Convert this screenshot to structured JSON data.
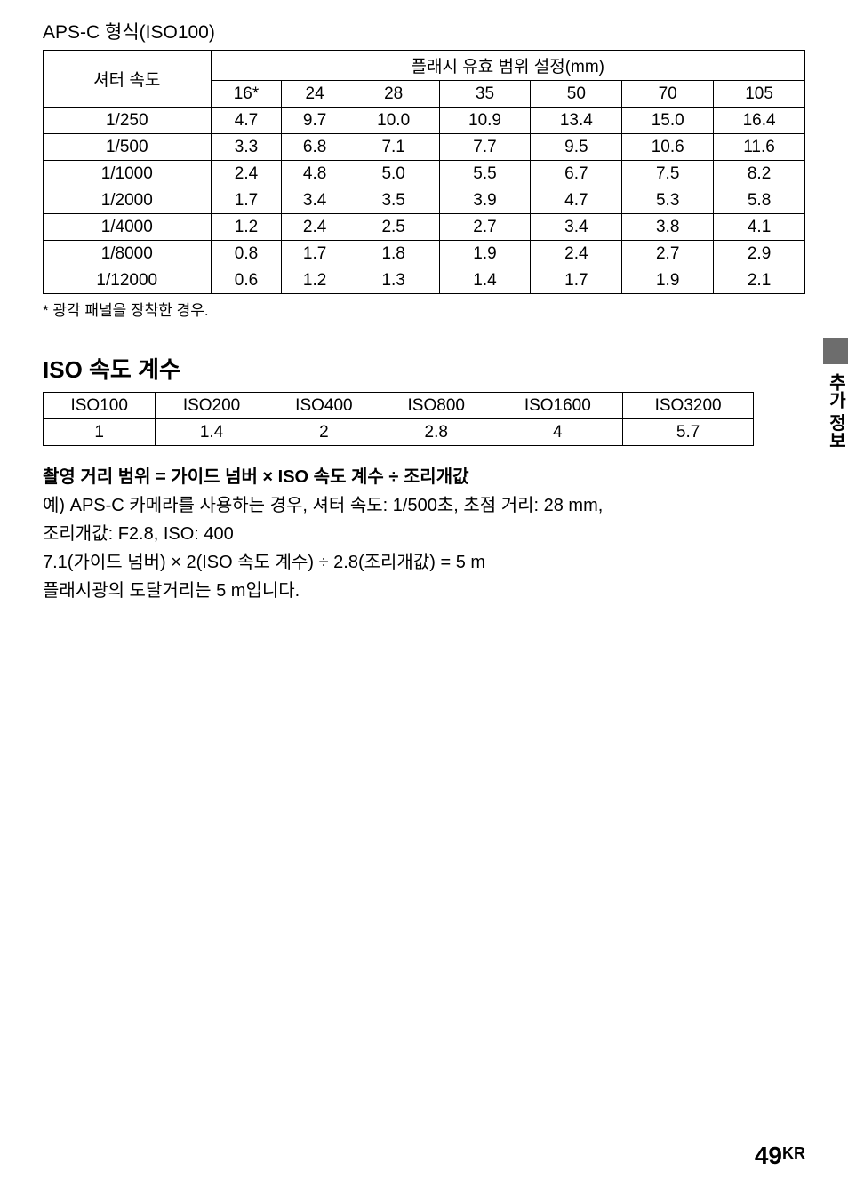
{
  "section1": {
    "title": "APS-C 형식(ISO100)",
    "row_header": "셔터 속도",
    "group_header": "플래시 유효 범위 설정(mm)",
    "focal_lengths": [
      "16*",
      "24",
      "28",
      "35",
      "50",
      "70",
      "105"
    ],
    "rows": [
      {
        "speed": "1/250",
        "vals": [
          "4.7",
          "9.7",
          "10.0",
          "10.9",
          "13.4",
          "15.0",
          "16.4"
        ]
      },
      {
        "speed": "1/500",
        "vals": [
          "3.3",
          "6.8",
          "7.1",
          "7.7",
          "9.5",
          "10.6",
          "11.6"
        ]
      },
      {
        "speed": "1/1000",
        "vals": [
          "2.4",
          "4.8",
          "5.0",
          "5.5",
          "6.7",
          "7.5",
          "8.2"
        ]
      },
      {
        "speed": "1/2000",
        "vals": [
          "1.7",
          "3.4",
          "3.5",
          "3.9",
          "4.7",
          "5.3",
          "5.8"
        ]
      },
      {
        "speed": "1/4000",
        "vals": [
          "1.2",
          "2.4",
          "2.5",
          "2.7",
          "3.4",
          "3.8",
          "4.1"
        ]
      },
      {
        "speed": "1/8000",
        "vals": [
          "0.8",
          "1.7",
          "1.8",
          "1.9",
          "2.4",
          "2.7",
          "2.9"
        ]
      },
      {
        "speed": "1/12000",
        "vals": [
          "0.6",
          "1.2",
          "1.3",
          "1.4",
          "1.7",
          "1.9",
          "2.1"
        ]
      }
    ],
    "footnote": "* 광각 패널을 장착한 경우."
  },
  "section2": {
    "title": "ISO 속도 계수",
    "headers": [
      "ISO100",
      "ISO200",
      "ISO400",
      "ISO800",
      "ISO1600",
      "ISO3200"
    ],
    "values": [
      "1",
      "1.4",
      "2",
      "2.8",
      "4",
      "5.7"
    ]
  },
  "formula": "촬영 거리 범위 = 가이드 넘버 × ISO 속도 계수 ÷ 조리개값",
  "example": {
    "line1": "예) APS-C 카메라를 사용하는 경우, 셔터 속도: 1/500초, 초점 거리: 28 mm,",
    "line2": "조리개값: F2.8, ISO: 400",
    "line3": "7.1(가이드 넘버) × 2(ISO 속도 계수) ÷ 2.8(조리개값) = 5 m",
    "line4": "플래시광의 도달거리는 5 m입니다."
  },
  "side_label": "추가 정보",
  "page_number": "49",
  "page_suffix": "KR"
}
